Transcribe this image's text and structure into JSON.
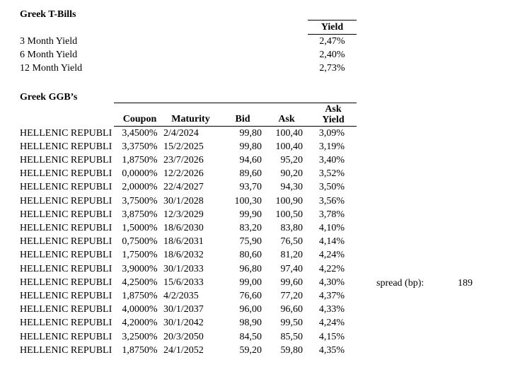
{
  "page": {
    "background": "#ffffff",
    "text_color": "#000000"
  },
  "tbills": {
    "title": "Greek T-Bills",
    "yield_header": "Yield",
    "rows": [
      {
        "label": "3 Month Yield",
        "value": "2,47%"
      },
      {
        "label": "6 Month Yield",
        "value": "2,40%"
      },
      {
        "label": "12 Month Yield",
        "value": "2,73%"
      }
    ]
  },
  "ggbs": {
    "title": "Greek GGB’s",
    "headers": {
      "name": "",
      "coupon": "Coupon",
      "maturity": "Maturity",
      "bid": "Bid",
      "ask": "Ask",
      "ask_yield_line1": "Ask",
      "ask_yield_line2": "Yield"
    },
    "rows": [
      {
        "name": "HELLENIC REPUBLI",
        "coupon": "3,4500%",
        "maturity": "2/4/2024",
        "bid": "99,80",
        "ask": "100,40",
        "ask_yield": "3,09%"
      },
      {
        "name": "HELLENIC REPUBLI",
        "coupon": "3,3750%",
        "maturity": "15/2/2025",
        "bid": "99,80",
        "ask": "100,40",
        "ask_yield": "3,19%"
      },
      {
        "name": "HELLENIC REPUBLI",
        "coupon": "1,8750%",
        "maturity": "23/7/2026",
        "bid": "94,60",
        "ask": "95,20",
        "ask_yield": "3,40%"
      },
      {
        "name": "HELLENIC REPUBLI",
        "coupon": "0,0000%",
        "maturity": "12/2/2026",
        "bid": "89,60",
        "ask": "90,20",
        "ask_yield": "3,52%"
      },
      {
        "name": "HELLENIC REPUBLI",
        "coupon": "2,0000%",
        "maturity": "22/4/2027",
        "bid": "93,70",
        "ask": "94,30",
        "ask_yield": "3,50%"
      },
      {
        "name": "HELLENIC REPUBLI",
        "coupon": "3,7500%",
        "maturity": "30/1/2028",
        "bid": "100,30",
        "ask": "100,90",
        "ask_yield": "3,56%"
      },
      {
        "name": "HELLENIC REPUBLI",
        "coupon": "3,8750%",
        "maturity": "12/3/2029",
        "bid": "99,90",
        "ask": "100,50",
        "ask_yield": "3,78%"
      },
      {
        "name": "HELLENIC REPUBLI",
        "coupon": "1,5000%",
        "maturity": "18/6/2030",
        "bid": "83,20",
        "ask": "83,80",
        "ask_yield": "4,10%"
      },
      {
        "name": "HELLENIC REPUBLI",
        "coupon": "0,7500%",
        "maturity": "18/6/2031",
        "bid": "75,90",
        "ask": "76,50",
        "ask_yield": "4,14%"
      },
      {
        "name": "HELLENIC REPUBLI",
        "coupon": "1,7500%",
        "maturity": "18/6/2032",
        "bid": "80,60",
        "ask": "81,20",
        "ask_yield": "4,24%"
      },
      {
        "name": "HELLENIC REPUBLI",
        "coupon": "3,9000%",
        "maturity": "30/1/2033",
        "bid": "96,80",
        "ask": "97,40",
        "ask_yield": "4,22%"
      },
      {
        "name": "HELLENIC REPUBLI",
        "coupon": "4,2500%",
        "maturity": "15/6/2033",
        "bid": "99,00",
        "ask": "99,60",
        "ask_yield": "4,30%"
      },
      {
        "name": "HELLENIC REPUBLI",
        "coupon": "1,8750%",
        "maturity": "4/2/2035",
        "bid": "76,60",
        "ask": "77,20",
        "ask_yield": "4,37%"
      },
      {
        "name": "HELLENIC REPUBLI",
        "coupon": "4,0000%",
        "maturity": "30/1/2037",
        "bid": "96,00",
        "ask": "96,60",
        "ask_yield": "4,33%"
      },
      {
        "name": "HELLENIC REPUBLI",
        "coupon": "4,2000%",
        "maturity": "30/1/2042",
        "bid": "98,90",
        "ask": "99,50",
        "ask_yield": "4,24%"
      },
      {
        "name": "HELLENIC REPUBLI",
        "coupon": "3,2500%",
        "maturity": "20/3/2050",
        "bid": "84,50",
        "ask": "85,50",
        "ask_yield": "4,15%"
      },
      {
        "name": "HELLENIC REPUBLI",
        "coupon": "1,8750%",
        "maturity": "24/1/2052",
        "bid": "59,20",
        "ask": "59,80",
        "ask_yield": "4,35%"
      }
    ]
  },
  "spread": {
    "label": "spread (bp):",
    "value": "189"
  }
}
